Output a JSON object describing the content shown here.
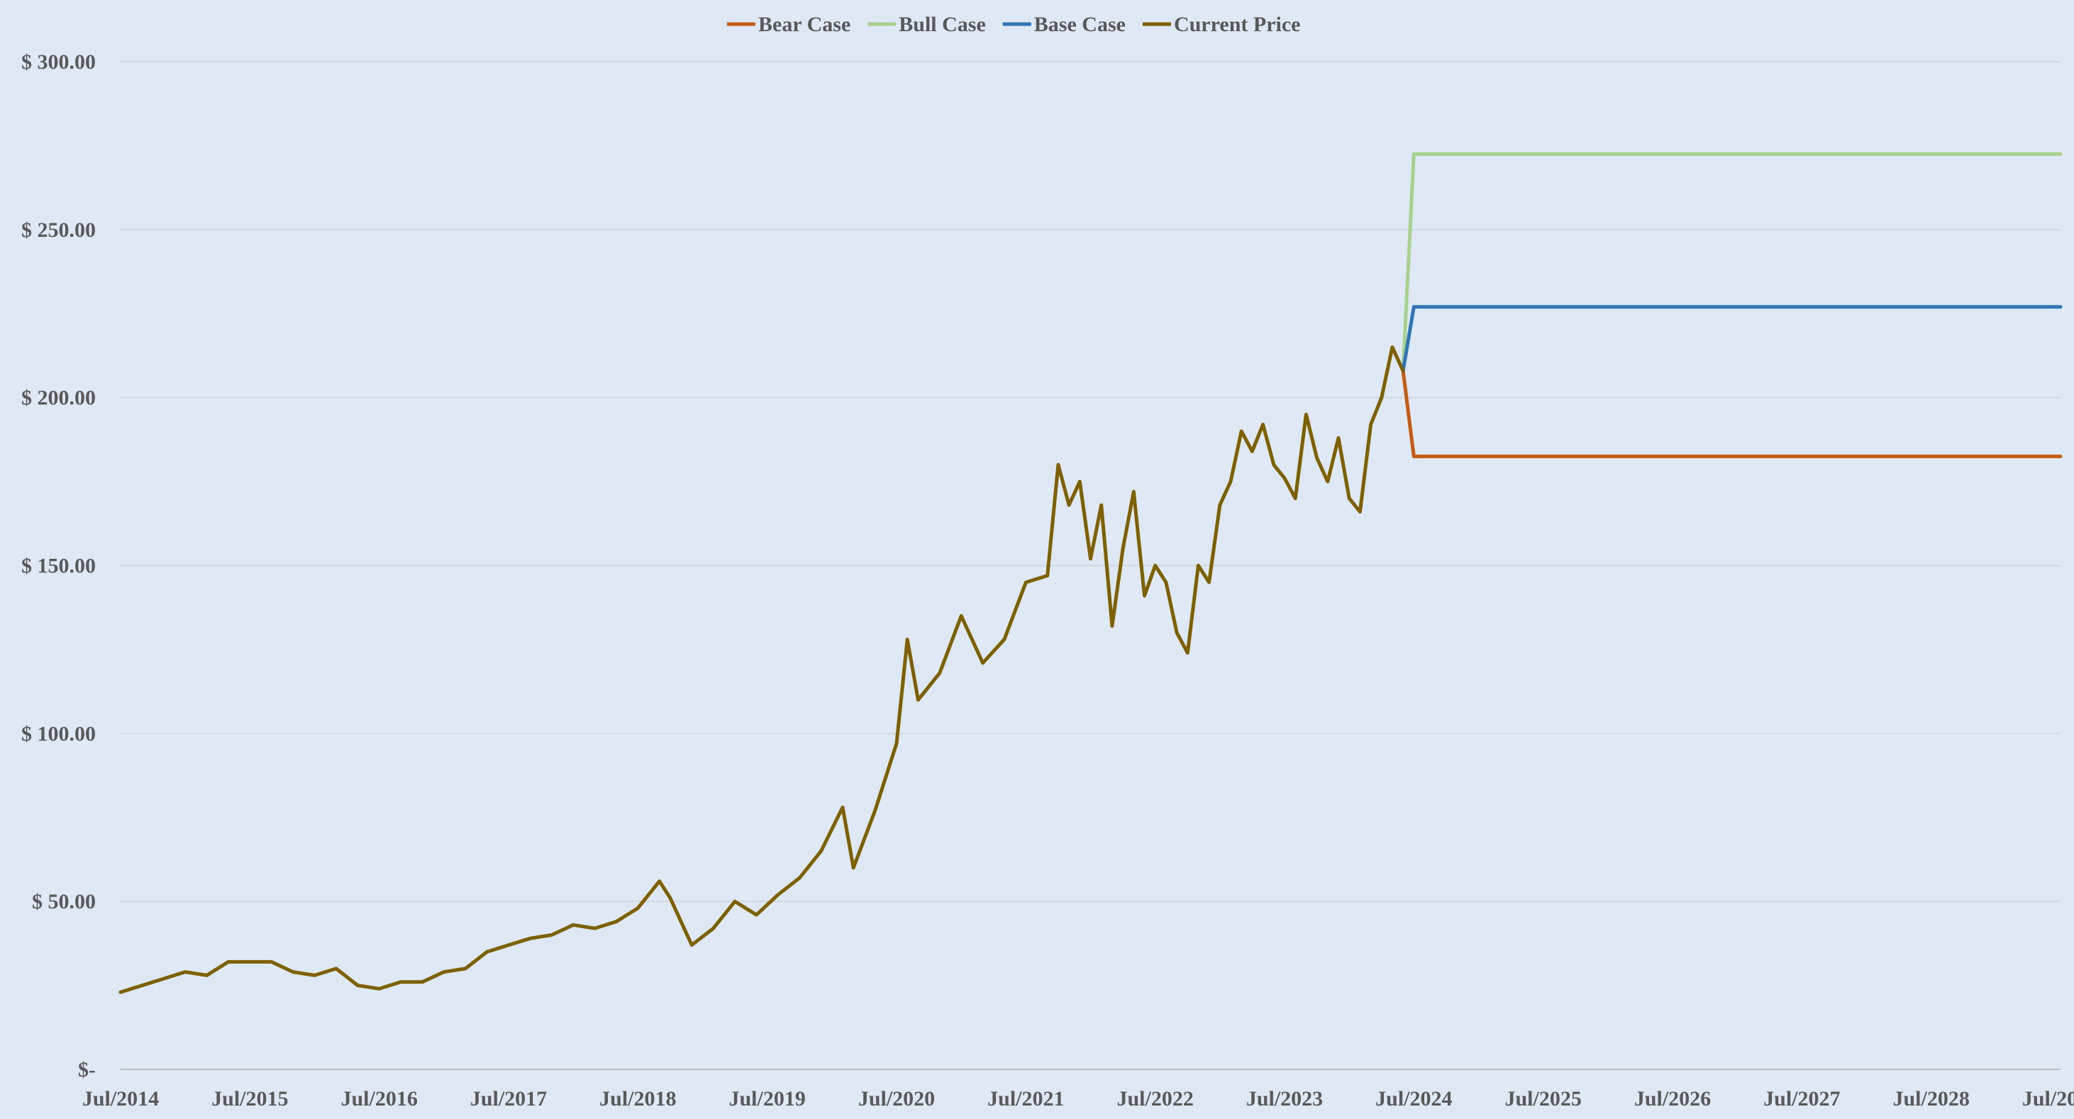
{
  "chart_data": {
    "type": "line",
    "title": "",
    "xlabel": "",
    "ylabel": "",
    "ylim": [
      0,
      300
    ],
    "xlim": [
      "2014-07",
      "2029-07"
    ],
    "grid": "horizontal",
    "legend_position": "top-center",
    "y_ticks": [
      {
        "value": 0,
        "label": "$-"
      },
      {
        "value": 50,
        "label": "$ 50.00"
      },
      {
        "value": 100,
        "label": "$ 100.00"
      },
      {
        "value": 150,
        "label": "$ 150.00"
      },
      {
        "value": 200,
        "label": "$ 200.00"
      },
      {
        "value": 250,
        "label": "$ 250.00"
      },
      {
        "value": 300,
        "label": "$ 300.00"
      }
    ],
    "x_ticks": [
      {
        "value": "2014-07",
        "label": "Jul/2014"
      },
      {
        "value": "2015-07",
        "label": "Jul/2015"
      },
      {
        "value": "2016-07",
        "label": "Jul/2016"
      },
      {
        "value": "2017-07",
        "label": "Jul/2017"
      },
      {
        "value": "2018-07",
        "label": "Jul/2018"
      },
      {
        "value": "2019-07",
        "label": "Jul/2019"
      },
      {
        "value": "2020-07",
        "label": "Jul/2020"
      },
      {
        "value": "2021-07",
        "label": "Jul/2021"
      },
      {
        "value": "2022-07",
        "label": "Jul/2022"
      },
      {
        "value": "2023-07",
        "label": "Jul/2023"
      },
      {
        "value": "2024-07",
        "label": "Jul/2024"
      },
      {
        "value": "2025-07",
        "label": "Jul/2025"
      },
      {
        "value": "2026-07",
        "label": "Jul/2026"
      },
      {
        "value": "2027-07",
        "label": "Jul/2027"
      },
      {
        "value": "2028-07",
        "label": "Jul/2028"
      },
      {
        "value": "2029-07",
        "label": "Jul/2029"
      }
    ],
    "series": [
      {
        "name": "Bear Case",
        "color": "#c55a11",
        "x": [
          "2024-06",
          "2024-07",
          "2029-07"
        ],
        "values": [
          208,
          182.5,
          182.5
        ]
      },
      {
        "name": "Bull Case",
        "color": "#a9d18e",
        "x": [
          "2024-06",
          "2024-07",
          "2029-07"
        ],
        "values": [
          208,
          272.5,
          272.5
        ]
      },
      {
        "name": "Base Case",
        "color": "#2e75b6",
        "x": [
          "2024-06",
          "2024-07",
          "2029-07"
        ],
        "values": [
          208,
          227,
          227
        ]
      },
      {
        "name": "Current Price",
        "color": "#7f6000",
        "x": [
          "2014-07",
          "2014-09",
          "2014-11",
          "2015-01",
          "2015-03",
          "2015-05",
          "2015-07",
          "2015-09",
          "2015-11",
          "2016-01",
          "2016-03",
          "2016-05",
          "2016-07",
          "2016-09",
          "2016-11",
          "2017-01",
          "2017-03",
          "2017-05",
          "2017-07",
          "2017-09",
          "2017-11",
          "2018-01",
          "2018-03",
          "2018-05",
          "2018-07",
          "2018-09",
          "2018-10",
          "2018-12",
          "2019-02",
          "2019-04",
          "2019-06",
          "2019-08",
          "2019-10",
          "2019-12",
          "2020-02",
          "2020-03",
          "2020-05",
          "2020-07",
          "2020-08",
          "2020-09",
          "2020-11",
          "2021-01",
          "2021-03",
          "2021-05",
          "2021-07",
          "2021-09",
          "2021-10",
          "2021-11",
          "2021-12",
          "2022-01",
          "2022-02",
          "2022-03",
          "2022-04",
          "2022-05",
          "2022-06",
          "2022-07",
          "2022-08",
          "2022-09",
          "2022-10",
          "2022-11",
          "2022-12",
          "2023-01",
          "2023-02",
          "2023-03",
          "2023-04",
          "2023-05",
          "2023-06",
          "2023-07",
          "2023-08",
          "2023-09",
          "2023-10",
          "2023-11",
          "2023-12",
          "2024-01",
          "2024-02",
          "2024-03",
          "2024-04",
          "2024-05",
          "2024-06"
        ],
        "values": [
          23,
          25,
          27,
          29,
          28,
          32,
          32,
          32,
          29,
          28,
          30,
          25,
          24,
          26,
          26,
          29,
          30,
          35,
          37,
          39,
          40,
          43,
          42,
          44,
          48,
          56,
          51,
          37,
          42,
          50,
          46,
          52,
          57,
          65,
          78,
          60,
          77,
          97,
          128,
          110,
          118,
          135,
          121,
          128,
          145,
          147,
          180,
          168,
          175,
          152,
          168,
          132,
          155,
          172,
          141,
          150,
          145,
          130,
          124,
          150,
          145,
          168,
          175,
          190,
          184,
          192,
          180,
          176,
          170,
          195,
          182,
          175,
          188,
          170,
          166,
          192,
          200,
          215,
          208
        ]
      }
    ]
  }
}
